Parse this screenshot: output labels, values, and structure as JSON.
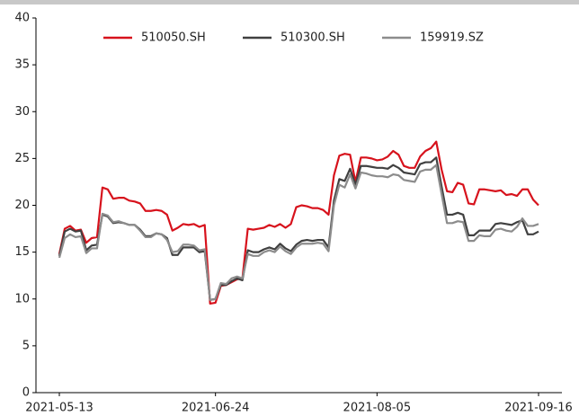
{
  "chart_data": {
    "type": "line",
    "categories": [
      "2021-05-13",
      null,
      null,
      null,
      null,
      null,
      null,
      null,
      null,
      null,
      null,
      null,
      null,
      null,
      null,
      null,
      null,
      null,
      null,
      null,
      null,
      null,
      null,
      null,
      null,
      null,
      null,
      null,
      null,
      "2021-06-24",
      null,
      null,
      null,
      null,
      null,
      null,
      null,
      null,
      null,
      null,
      null,
      null,
      null,
      null,
      null,
      null,
      null,
      null,
      null,
      null,
      null,
      null,
      null,
      null,
      null,
      null,
      null,
      null,
      null,
      "2021-08-05",
      null,
      null,
      null,
      null,
      null,
      null,
      null,
      null,
      null,
      null,
      null,
      null,
      null,
      null,
      null,
      null,
      null,
      null,
      null,
      null,
      null,
      null,
      null,
      null,
      null,
      null,
      null,
      null,
      null,
      "2021-09-16"
    ],
    "series": [
      {
        "name": "510050.SH",
        "color": "#d7121c",
        "values": [
          14.8,
          17.5,
          17.8,
          17.3,
          17.4,
          16.0,
          16.5,
          16.6,
          21.9,
          21.7,
          20.7,
          20.8,
          20.8,
          20.5,
          20.4,
          20.2,
          19.4,
          19.4,
          19.5,
          19.4,
          19.0,
          17.3,
          17.6,
          18.0,
          17.9,
          18.0,
          17.7,
          17.9,
          9.5,
          9.6,
          11.4,
          11.5,
          11.8,
          12.1,
          12.2,
          17.5,
          17.4,
          17.5,
          17.6,
          17.9,
          17.7,
          18.0,
          17.6,
          18.0,
          19.8,
          20.0,
          19.9,
          19.7,
          19.7,
          19.5,
          19.0,
          23.2,
          25.3,
          25.5,
          25.4,
          22.5,
          25.1,
          25.1,
          25.0,
          24.8,
          24.9,
          25.2,
          25.8,
          25.4,
          24.2,
          24.0,
          24.0,
          25.2,
          25.8,
          26.1,
          26.8,
          23.8,
          21.5,
          21.4,
          22.4,
          22.2,
          20.2,
          20.1,
          21.7,
          21.7,
          21.6,
          21.5,
          21.6,
          21.1,
          21.2,
          21.0,
          21.7,
          21.7,
          20.6,
          20.0
        ]
      },
      {
        "name": "510300.SH",
        "color": "#404040",
        "values": [
          14.6,
          17.2,
          17.5,
          17.2,
          17.3,
          15.2,
          15.7,
          15.8,
          19.0,
          18.8,
          18.1,
          18.2,
          18.1,
          17.9,
          17.9,
          17.4,
          16.7,
          16.7,
          17.0,
          16.9,
          16.5,
          14.7,
          14.7,
          15.5,
          15.5,
          15.5,
          15.0,
          15.1,
          9.9,
          10.0,
          11.5,
          11.5,
          11.9,
          12.2,
          12.0,
          15.2,
          15.0,
          15.0,
          15.3,
          15.5,
          15.3,
          15.9,
          15.4,
          15.1,
          15.8,
          16.2,
          16.3,
          16.2,
          16.3,
          16.3,
          15.5,
          20.5,
          22.8,
          22.6,
          23.9,
          22.2,
          24.2,
          24.2,
          24.1,
          24.0,
          24.0,
          23.9,
          24.3,
          24.0,
          23.5,
          23.4,
          23.3,
          24.4,
          24.6,
          24.6,
          25.1,
          22.0,
          19.0,
          19.0,
          19.2,
          19.0,
          16.8,
          16.8,
          17.3,
          17.3,
          17.3,
          18.0,
          18.1,
          18.0,
          17.9,
          18.2,
          18.4,
          16.9,
          16.9,
          17.2
        ]
      },
      {
        "name": "159919.SZ",
        "color": "#8c8c8c",
        "values": [
          14.4,
          16.5,
          16.9,
          16.6,
          16.7,
          14.9,
          15.4,
          15.4,
          19.1,
          18.9,
          18.2,
          18.3,
          18.1,
          17.9,
          17.9,
          17.3,
          16.6,
          16.6,
          17.0,
          16.9,
          16.3,
          15.0,
          15.1,
          15.8,
          15.8,
          15.7,
          15.2,
          15.3,
          9.9,
          10.0,
          11.7,
          11.6,
          12.2,
          12.4,
          12.2,
          14.8,
          14.6,
          14.6,
          15.0,
          15.2,
          15.0,
          15.6,
          15.1,
          14.8,
          15.5,
          15.9,
          15.9,
          15.9,
          16.0,
          15.9,
          15.1,
          20.0,
          22.2,
          21.9,
          23.3,
          21.8,
          23.5,
          23.4,
          23.2,
          23.1,
          23.1,
          23.0,
          23.3,
          23.2,
          22.7,
          22.6,
          22.5,
          23.6,
          23.8,
          23.8,
          24.3,
          21.2,
          18.1,
          18.1,
          18.3,
          18.2,
          16.2,
          16.2,
          16.8,
          16.7,
          16.7,
          17.4,
          17.5,
          17.3,
          17.2,
          17.7,
          18.6,
          17.8,
          17.8,
          18.0
        ]
      }
    ],
    "ylim": [
      0,
      40
    ],
    "yticks": [
      0,
      5,
      10,
      15,
      20,
      25,
      30,
      35,
      40
    ],
    "legend": "top"
  }
}
